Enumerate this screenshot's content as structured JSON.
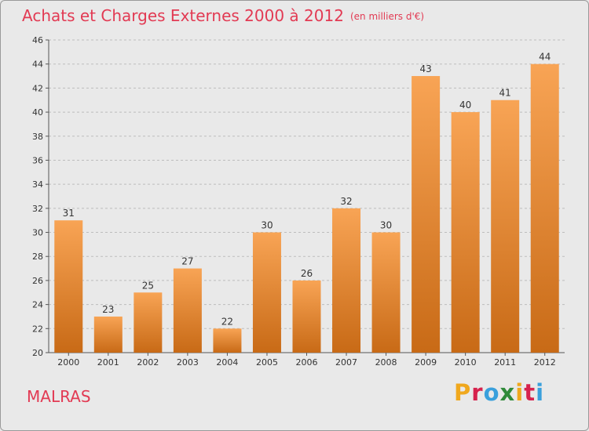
{
  "chart_data": {
    "type": "bar",
    "title": "Achats et Charges Externes 2000 à 2012",
    "unit": "(en milliers d'€)",
    "xlabel": "",
    "ylabel": "",
    "categories": [
      "2000",
      "2001",
      "2002",
      "2003",
      "2004",
      "2005",
      "2006",
      "2007",
      "2008",
      "2009",
      "2010",
      "2011",
      "2012"
    ],
    "values": [
      31,
      23,
      25,
      27,
      22,
      30,
      26,
      32,
      30,
      43,
      40,
      41,
      44
    ],
    "ylim": [
      20,
      46
    ],
    "yticks": [
      20,
      22,
      24,
      26,
      28,
      30,
      32,
      34,
      36,
      38,
      40,
      42,
      44,
      46
    ],
    "grid": "horizontal dashed",
    "legend": "none",
    "colors": {
      "bar_top": "#f8a455",
      "bar_bottom": "#c86a16",
      "title": "#e23a53"
    }
  },
  "footer": {
    "place_name": "MALRAS"
  },
  "logo": {
    "text": "Proxiti",
    "letters": [
      "P",
      "r",
      "o",
      "x",
      "i",
      "t",
      "i"
    ],
    "letter_colors": [
      "#f0a81d",
      "#d6224d",
      "#3aa0dc",
      "#2f8a3a",
      "#f0a81d",
      "#d6224d",
      "#3aa0dc"
    ]
  }
}
